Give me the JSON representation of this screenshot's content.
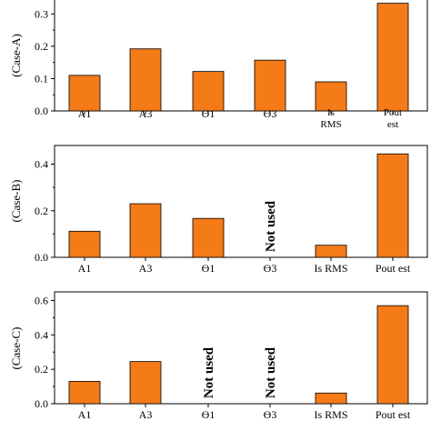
{
  "colors": {
    "bar": "#f57a18"
  },
  "chart_data": [
    {
      "type": "bar",
      "ylabel": "(Case-A)",
      "ylim": [
        0,
        0.36
      ],
      "yticks": [
        "0.0",
        "0.1",
        "0.2",
        "0.3"
      ],
      "yticks_values": [
        0,
        0.1,
        0.2,
        0.3
      ],
      "categories": [
        [
          "A1"
        ],
        [
          "A3"
        ],
        [
          "Ɵ1"
        ],
        [
          "Ɵ3"
        ],
        [
          "Is",
          "RMS"
        ],
        [
          "Pout",
          "est"
        ]
      ],
      "values": [
        0.11,
        0.192,
        0.122,
        0.157,
        0.09,
        0.333
      ],
      "annotations": []
    },
    {
      "type": "bar",
      "ylabel": "(Case-B)",
      "ylim": [
        0,
        0.48
      ],
      "yticks": [
        "0.0",
        "0.2",
        "0.4"
      ],
      "yticks_values": [
        0,
        0.2,
        0.4
      ],
      "categories": [
        [
          "A1"
        ],
        [
          "A3"
        ],
        [
          "Ɵ1"
        ],
        [
          "Ɵ3"
        ],
        [
          "Is RMS"
        ],
        [
          "Pout est"
        ]
      ],
      "values": [
        0.112,
        0.23,
        0.167,
        null,
        0.052,
        0.444
      ],
      "annotations": [
        {
          "index": 3,
          "text": "Not used"
        }
      ]
    },
    {
      "type": "bar",
      "ylabel": "(Case-C)",
      "ylim": [
        0,
        0.65
      ],
      "yticks": [
        "0.0",
        "0.2",
        "0.4",
        "0.6"
      ],
      "yticks_values": [
        0,
        0.2,
        0.4,
        0.6
      ],
      "categories": [
        [
          "A1"
        ],
        [
          "A3"
        ],
        [
          "Ɵ1"
        ],
        [
          "Ɵ3"
        ],
        [
          "Is RMS"
        ],
        [
          "Pout est"
        ]
      ],
      "values": [
        0.13,
        0.245,
        null,
        null,
        0.062,
        0.57
      ],
      "annotations": [
        {
          "index": 2,
          "text": "Not used"
        },
        {
          "index": 3,
          "text": "Not used"
        }
      ]
    }
  ]
}
